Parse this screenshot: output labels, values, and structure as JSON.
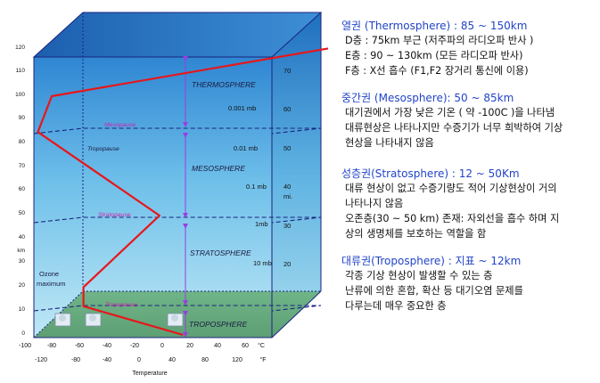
{
  "left_axis": {
    "ticks": [
      "120",
      "110",
      "100",
      "90",
      "80",
      "70",
      "60",
      "50",
      "40",
      "30",
      "20",
      "10",
      "0"
    ],
    "unit": "km"
  },
  "right_axis": {
    "km_ticks": [
      "70",
      "60",
      "50",
      "40",
      "30",
      "20"
    ],
    "unit": "mi.",
    "pressure_labels": [
      "0.001 mb",
      "0.01 mb",
      "0.1 mb",
      "1mb",
      "10 mb"
    ]
  },
  "bottom_axis": {
    "celsius_ticks": [
      "-100",
      "-80",
      "-60",
      "-40",
      "-20",
      "0",
      "20",
      "40",
      "60"
    ],
    "celsius_unit": "°C",
    "fahrenheit_ticks": [
      "-120",
      "-80",
      "-40",
      "0",
      "40",
      "80",
      "120"
    ],
    "fahrenheit_unit": "°F",
    "title": "Temperature"
  },
  "layers": [
    "THERMOSPHERE",
    "MESOSPHERE",
    "STRATOSPHERE",
    "TROPOSPHERE"
  ],
  "boundaries": [
    "Mesopause",
    "Tropopause",
    "Stratopause",
    "Tropopause"
  ],
  "ozone_label": [
    "Ozone",
    "maximum"
  ],
  "temperature_profile": {
    "x_unit": "°C",
    "y_unit": "km",
    "points": [
      [
        15,
        0
      ],
      [
        -57,
        12
      ],
      [
        -57,
        20
      ],
      [
        -2,
        50
      ],
      [
        -90,
        85
      ],
      [
        -80,
        100
      ],
      [
        120,
        120
      ]
    ]
  },
  "notes": [
    {
      "head": "열권 (Thermosphere) : 85 ~ 150km",
      "lines": [
        "D층 : 75km 부근 (저주파의 라디오파 반사 )",
        "E층 : 90 ~ 130km (모든 라디오파 반사)",
        "F층 : X선 흡수 (F1,F2 장거리 통신에  이용)"
      ]
    },
    {
      "head": "중간권 (Mesosphere): 50 ~ 85km",
      "lines": [
        "대기권에서 가장 낮은 기온 ( 약 -100C )을 나타냄",
        "대류현상은 나타나지만 수증기가 너무 희박하여 기상",
        "현상을 나타내지 않음"
      ]
    },
    {
      "head": "성층권(Stratosphere) : 12 ~ 50Km",
      "lines": [
        "대류 현상이 없고 수증기량도 적어 기상현상이 거의",
        "나타나지 않음",
        "오존층(30 ~ 50 km) 존재: 자외선을 흡수 하며 지",
        "상의 생명체를 보호하는 역할을 함"
      ]
    },
    {
      "head": "대류권(Troposphere) : 지표 ~ 12km",
      "lines": [
        "각종 기상 현상이 발생할 수 있는 층",
        "난류에 의한 혼합, 확산 등 대기오염 문제를",
        "다루는데 매우 중요한 층"
      ]
    }
  ],
  "colors": {
    "profile": "#e8161a",
    "boundary_label": "#cc22aa",
    "note_head": "#2244c8",
    "arrow": "#9a3de0",
    "box_edge": "#1a237e",
    "floor": "#7fc08a"
  }
}
